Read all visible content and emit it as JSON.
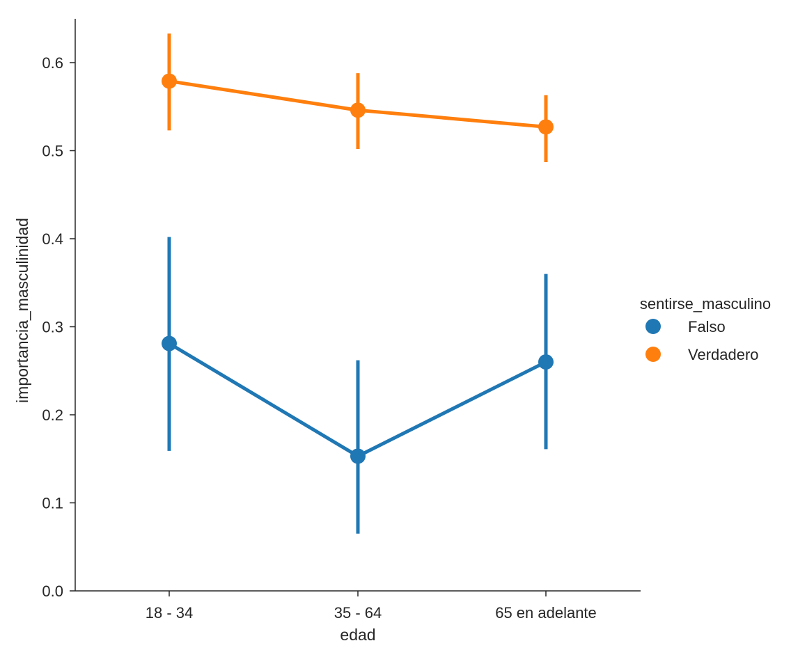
{
  "chart_data": {
    "type": "point",
    "title": "",
    "xlabel": "edad",
    "ylabel": "importancia_masculinidad",
    "categories": [
      "18 - 34",
      "35 - 64",
      "65 en adelante"
    ],
    "ylim": [
      0.0,
      0.65
    ],
    "yticks": [
      0.0,
      0.1,
      0.2,
      0.3,
      0.4,
      0.5,
      0.6
    ],
    "ytick_labels": [
      "0.0",
      "0.1",
      "0.2",
      "0.3",
      "0.4",
      "0.5",
      "0.6"
    ],
    "grid": false,
    "legend": {
      "title": "sentirse_masculino",
      "position": "right"
    },
    "series": [
      {
        "name": "Falso",
        "color": "#1f77b4",
        "values": [
          0.281,
          0.153,
          0.26
        ],
        "ci_low": [
          0.159,
          0.065,
          0.161
        ],
        "ci_high": [
          0.402,
          0.262,
          0.36
        ]
      },
      {
        "name": "Verdadero",
        "color": "#ff7f0e",
        "values": [
          0.579,
          0.546,
          0.527
        ],
        "ci_low": [
          0.523,
          0.502,
          0.487
        ],
        "ci_high": [
          0.633,
          0.588,
          0.563
        ]
      }
    ]
  }
}
